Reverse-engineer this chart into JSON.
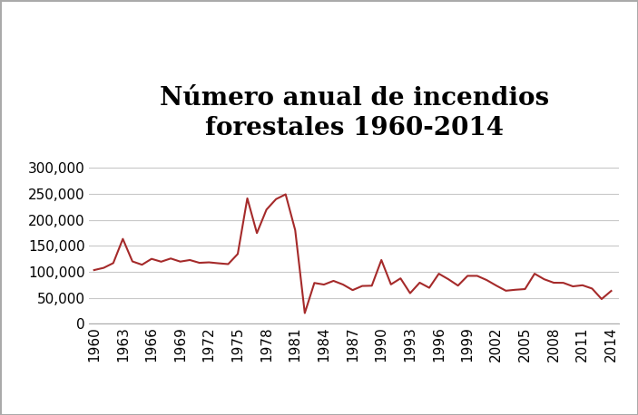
{
  "title": "Número anual de incendios\nforestales 1960-2014",
  "years": [
    1960,
    1961,
    1962,
    1963,
    1964,
    1965,
    1966,
    1967,
    1968,
    1969,
    1970,
    1971,
    1972,
    1973,
    1974,
    1975,
    1976,
    1977,
    1978,
    1979,
    1980,
    1981,
    1982,
    1983,
    1984,
    1985,
    1986,
    1987,
    1988,
    1989,
    1990,
    1991,
    1992,
    1993,
    1994,
    1995,
    1996,
    1997,
    1998,
    1999,
    2000,
    2001,
    2002,
    2003,
    2004,
    2005,
    2006,
    2007,
    2008,
    2009,
    2010,
    2011,
    2012,
    2013,
    2014
  ],
  "values": [
    103387,
    107675,
    116858,
    163487,
    120077,
    113684,
    125002,
    119542,
    125694,
    119729,
    122737,
    117359,
    118281,
    116442,
    114877,
    134416,
    241692,
    174706,
    219954,
    240174,
    249370,
    180274,
    20474,
    78557,
    75445,
    82591,
    75418,
    64752,
    72750,
    73237,
    122763,
    75754,
    87394,
    58810,
    79107,
    69229,
    96363,
    85705,
    73457,
    92250,
    92250,
    84079,
    73457,
    63589,
    65461,
    66753,
    96385,
    85705,
    78979,
    78792,
    71971,
    74126,
    67774,
    47579,
    63212
  ],
  "line_color": "#A52A2A",
  "background_color": "#ffffff",
  "grid_color": "#c8c8c8",
  "border_color": "#aaaaaa",
  "yticks": [
    0,
    50000,
    100000,
    150000,
    200000,
    250000,
    300000
  ],
  "xtick_step": 3,
  "ylim": [
    0,
    320000
  ],
  "xlim": [
    1959.5,
    2014.8
  ],
  "title_fontsize": 20,
  "tick_fontsize": 11
}
